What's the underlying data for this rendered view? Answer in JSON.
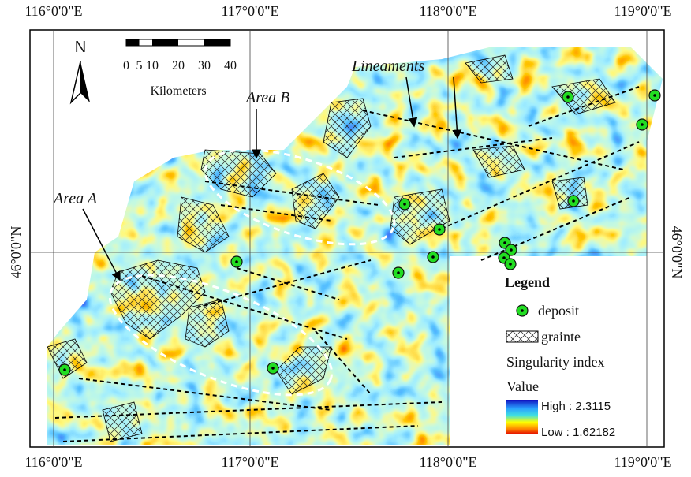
{
  "map": {
    "graticule": {
      "top": [
        "116°0'0\"E",
        "117°0'0\"E",
        "118°0'0\"E",
        "119°0'0\"E"
      ],
      "bottom": [
        "116°0'0\"E",
        "117°0'0\"E",
        "118°0'0\"E",
        "119°0'0\"E"
      ],
      "left": "46°0'0\"N",
      "right": "46°0'0\"N"
    },
    "north": "N",
    "scale_bar": {
      "ticks": [
        0,
        5,
        10,
        20,
        30,
        40
      ],
      "unit": "Kilometers"
    },
    "annotations": {
      "area_a": "Area A",
      "area_b": "Area B",
      "lineaments": "Lineaments"
    },
    "legend": {
      "title": "Legend",
      "deposit": "deposit",
      "granite": "grainte",
      "index_title": "Singularity index",
      "value": "Value",
      "high": "High : 2.3115",
      "low": "Low : 1.62182"
    }
  }
}
